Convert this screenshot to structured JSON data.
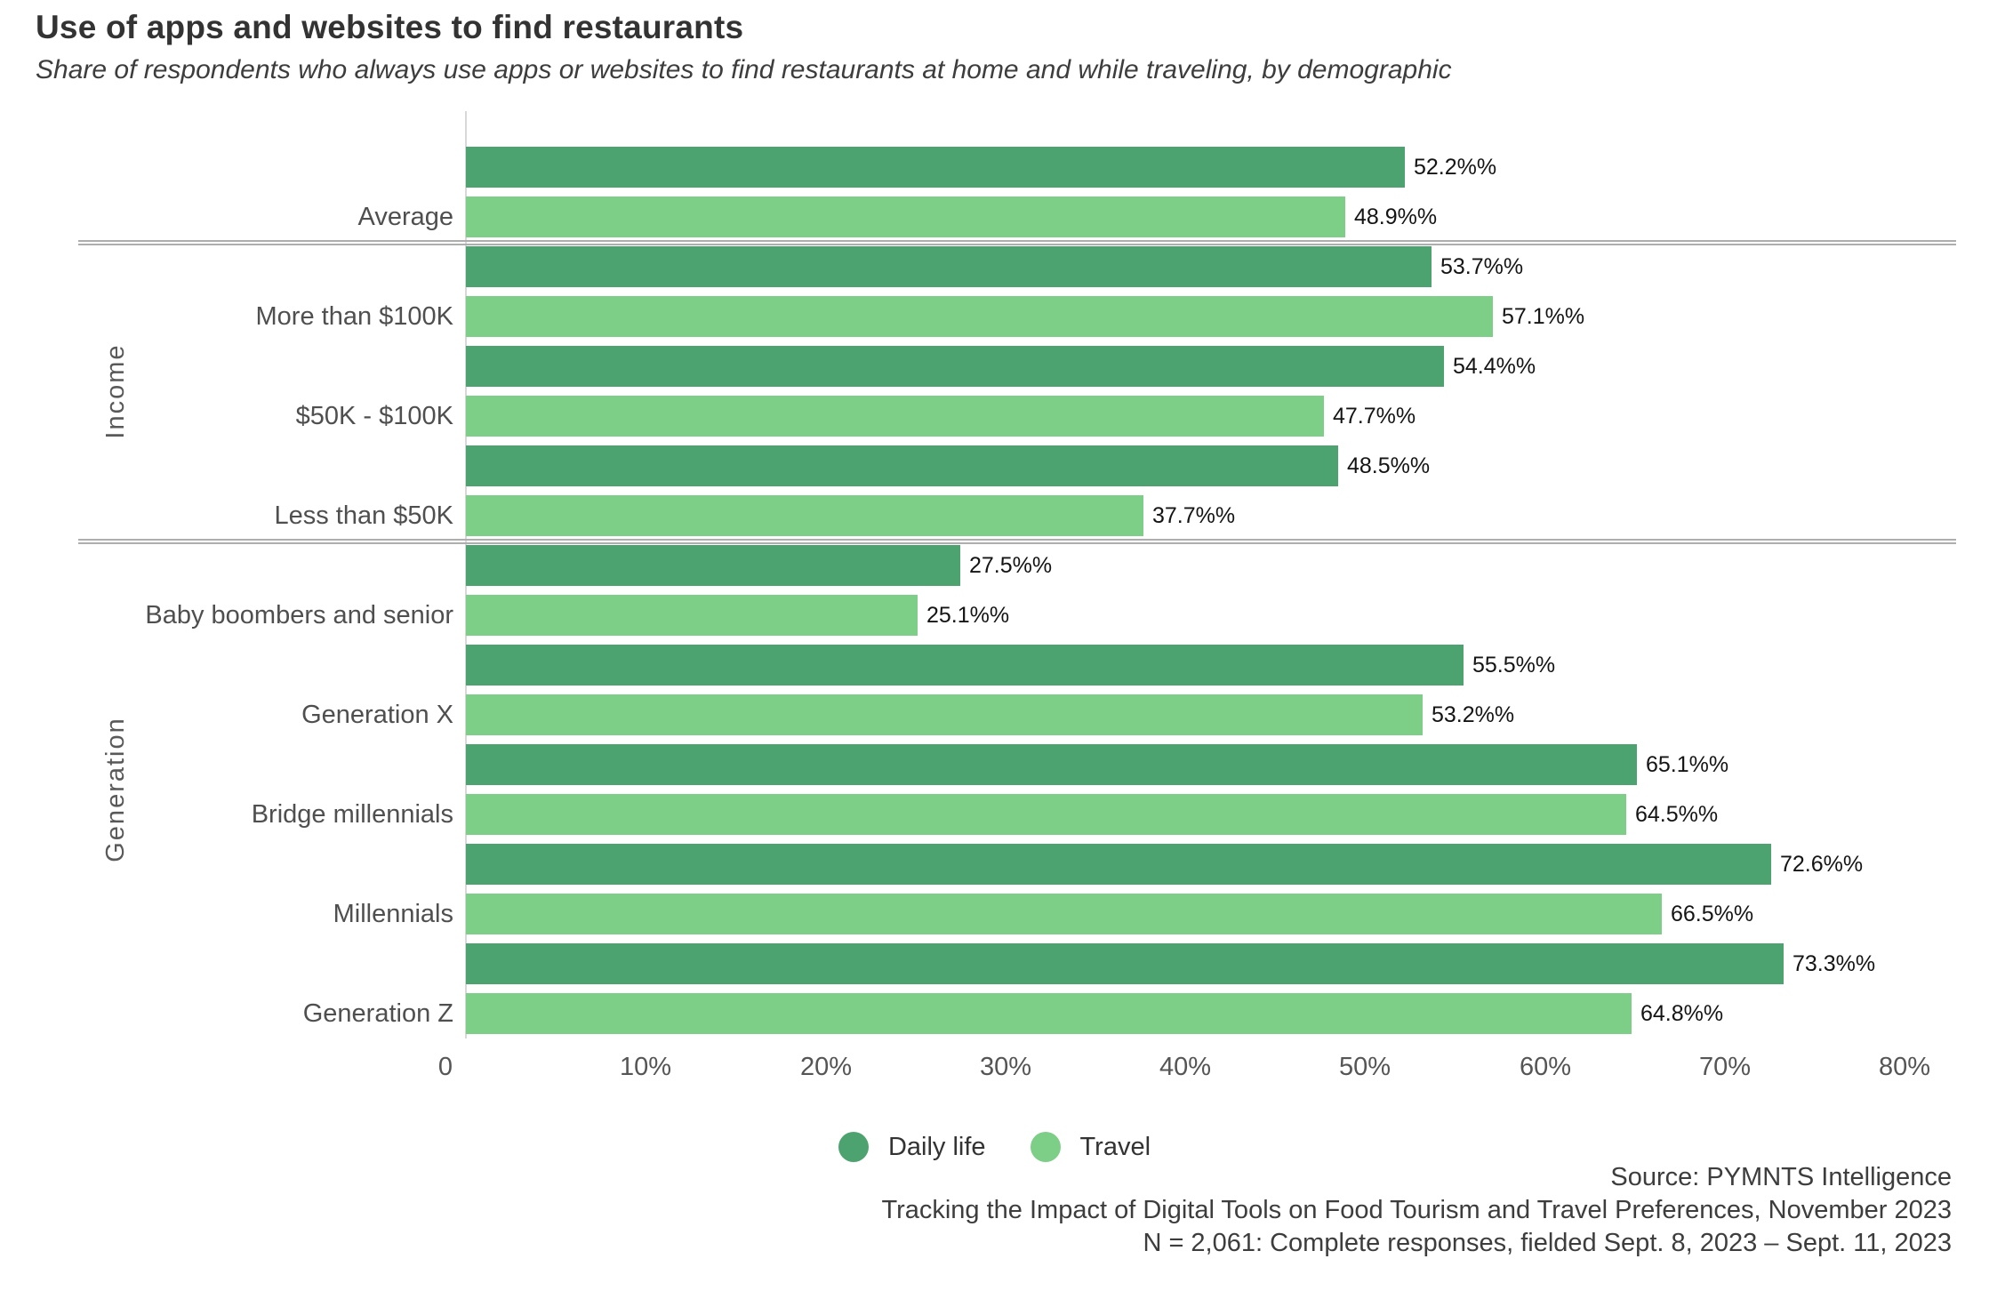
{
  "title": "Use of apps and websites to find restaurants",
  "subtitle": "Share of respondents who always use apps or websites to find restaurants at home and while traveling, by demographic",
  "colors": {
    "daily_life": "#4da370",
    "travel": "#7dce86",
    "separator": "#aeaeae",
    "axis_line": "#d8d8d8"
  },
  "chart_data": {
    "type": "bar",
    "orientation": "horizontal",
    "title": "Use of apps and websites to find restaurants",
    "xlabel": "",
    "ylabel": "",
    "xlim": [
      0,
      80
    ],
    "grid": false,
    "legend_position": "bottom-center",
    "x_ticks": [
      "0",
      "10%",
      "20%",
      "30%",
      "40%",
      "50%",
      "60%",
      "70%",
      "80%"
    ],
    "categories": [
      "Average",
      "More than $100K",
      "$50K - $100K",
      "Less than $50K",
      "Baby boombers and senior",
      "Generation X",
      "Bridge millennials",
      "Millennials",
      "Generation Z"
    ],
    "groups": [
      {
        "label": "",
        "start": 0,
        "end": 0
      },
      {
        "label": "Income",
        "start": 1,
        "end": 3
      },
      {
        "label": "Generation",
        "start": 4,
        "end": 8
      }
    ],
    "series": [
      {
        "name": "Daily life",
        "values": [
          52.2,
          53.7,
          54.4,
          48.5,
          27.5,
          55.5,
          65.1,
          72.6,
          73.3
        ]
      },
      {
        "name": "Travel",
        "values": [
          48.9,
          57.1,
          47.7,
          37.7,
          25.1,
          53.2,
          64.5,
          66.5,
          64.8
        ]
      }
    ],
    "value_label_suffix": "%%"
  },
  "legend": [
    {
      "label": "Daily life",
      "color": "#4da370"
    },
    {
      "label": "Travel",
      "color": "#7dce86"
    }
  ],
  "footer": {
    "line1": "Source: PYMNTS Intelligence",
    "line2": "Tracking the Impact of Digital Tools on Food Tourism and Travel Preferences, November 2023",
    "line3": "N = 2,061: Complete responses, fielded Sept. 8, 2023 – Sept. 11, 2023"
  }
}
